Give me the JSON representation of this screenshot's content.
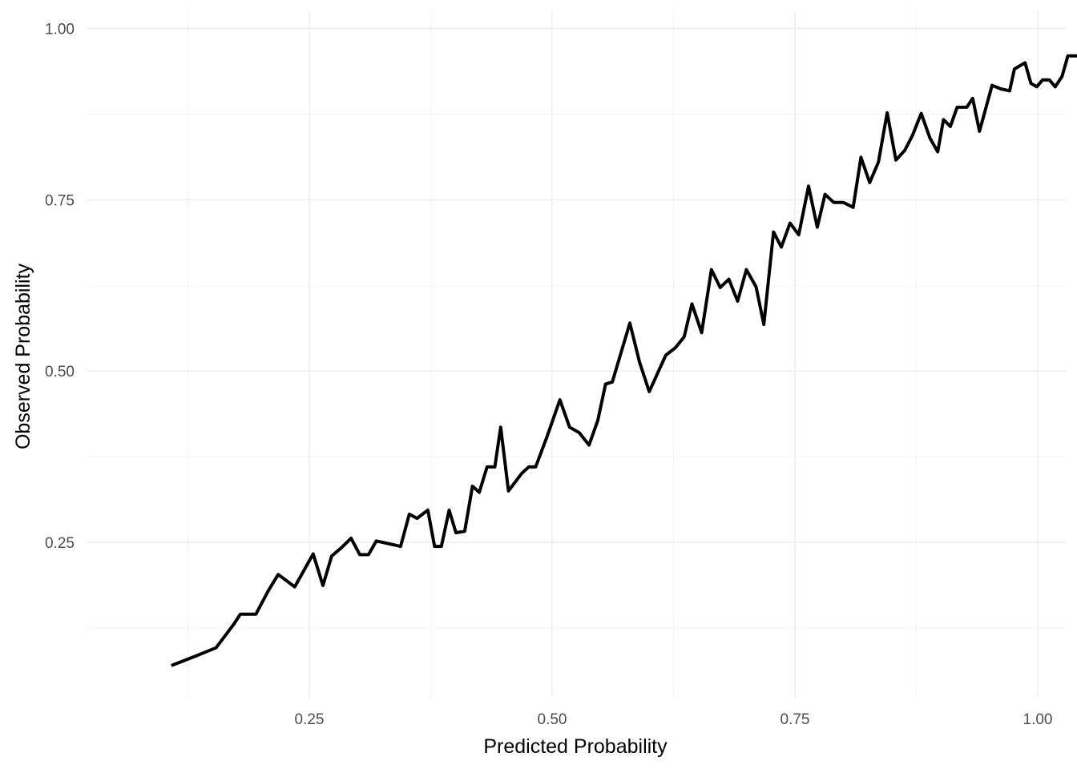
{
  "chart_data": {
    "type": "line",
    "title": "",
    "xlabel": "Predicted Probability",
    "ylabel": "Observed Probability",
    "xlim": [
      0.09,
      1.01
    ],
    "ylim": [
      0.063,
      1.013
    ],
    "x_ticks": [
      0.25,
      0.5,
      0.75,
      1.0
    ],
    "x_tick_labels": [
      "0.25",
      "0.50",
      "0.75",
      "1.00"
    ],
    "y_ticks": [
      0.25,
      0.5,
      0.75,
      1.0
    ],
    "y_tick_labels": [
      "0.25",
      "0.50",
      "0.75",
      "1.00"
    ],
    "grid": true,
    "legend": "none",
    "line_color": "#000000",
    "series": [
      {
        "points": [
          [
            0.108,
            0.07
          ],
          [
            0.133,
            0.084
          ],
          [
            0.154,
            0.096
          ],
          [
            0.172,
            0.13
          ],
          [
            0.179,
            0.145
          ],
          [
            0.195,
            0.145
          ],
          [
            0.208,
            0.18
          ],
          [
            0.218,
            0.203
          ],
          [
            0.235,
            0.185
          ],
          [
            0.254,
            0.233
          ],
          [
            0.264,
            0.187
          ],
          [
            0.273,
            0.23
          ],
          [
            0.283,
            0.242
          ],
          [
            0.293,
            0.256
          ],
          [
            0.302,
            0.232
          ],
          [
            0.311,
            0.232
          ],
          [
            0.319,
            0.252
          ],
          [
            0.344,
            0.244
          ],
          [
            0.353,
            0.291
          ],
          [
            0.361,
            0.285
          ],
          [
            0.372,
            0.297
          ],
          [
            0.379,
            0.244
          ],
          [
            0.386,
            0.244
          ],
          [
            0.394,
            0.297
          ],
          [
            0.401,
            0.264
          ],
          [
            0.41,
            0.266
          ],
          [
            0.418,
            0.332
          ],
          [
            0.425,
            0.323
          ],
          [
            0.433,
            0.36
          ],
          [
            0.441,
            0.36
          ],
          [
            0.447,
            0.418
          ],
          [
            0.455,
            0.325
          ],
          [
            0.469,
            0.351
          ],
          [
            0.476,
            0.36
          ],
          [
            0.483,
            0.36
          ],
          [
            0.495,
            0.405
          ],
          [
            0.508,
            0.458
          ],
          [
            0.518,
            0.418
          ],
          [
            0.528,
            0.41
          ],
          [
            0.538,
            0.392
          ],
          [
            0.547,
            0.428
          ],
          [
            0.555,
            0.481
          ],
          [
            0.562,
            0.484
          ],
          [
            0.58,
            0.57
          ],
          [
            0.59,
            0.513
          ],
          [
            0.6,
            0.47
          ],
          [
            0.617,
            0.523
          ],
          [
            0.627,
            0.534
          ],
          [
            0.636,
            0.55
          ],
          [
            0.644,
            0.598
          ],
          [
            0.654,
            0.556
          ],
          [
            0.664,
            0.648
          ],
          [
            0.673,
            0.622
          ],
          [
            0.682,
            0.634
          ],
          [
            0.691,
            0.602
          ],
          [
            0.7,
            0.648
          ],
          [
            0.71,
            0.623
          ],
          [
            0.718,
            0.568
          ],
          [
            0.728,
            0.703
          ],
          [
            0.736,
            0.681
          ],
          [
            0.745,
            0.716
          ],
          [
            0.754,
            0.699
          ],
          [
            0.764,
            0.77
          ],
          [
            0.773,
            0.71
          ],
          [
            0.781,
            0.758
          ],
          [
            0.79,
            0.746
          ],
          [
            0.8,
            0.746
          ],
          [
            0.81,
            0.739
          ],
          [
            0.818,
            0.812
          ],
          [
            0.827,
            0.775
          ],
          [
            0.836,
            0.805
          ],
          [
            0.845,
            0.877
          ],
          [
            0.854,
            0.808
          ],
          [
            0.863,
            0.822
          ],
          [
            0.871,
            0.844
          ],
          [
            0.88,
            0.876
          ],
          [
            0.889,
            0.84
          ],
          [
            0.897,
            0.82
          ],
          [
            0.903,
            0.867
          ],
          [
            0.91,
            0.857
          ],
          [
            0.917,
            0.885
          ],
          [
            0.927,
            0.885
          ],
          [
            0.933,
            0.898
          ],
          [
            0.94,
            0.85
          ],
          [
            0.953,
            0.917
          ],
          [
            0.962,
            0.912
          ],
          [
            0.971,
            0.909
          ],
          [
            0.976,
            0.941
          ],
          [
            0.987,
            0.95
          ],
          [
            0.993,
            0.92
          ],
          [
            0.999,
            0.915
          ],
          [
            1.005,
            0.925
          ],
          [
            1.012,
            0.925
          ],
          [
            1.018,
            0.915
          ],
          [
            1.025,
            0.93
          ],
          [
            1.031,
            0.96
          ],
          [
            1.043,
            0.96
          ],
          [
            1.052,
            0.972
          ]
        ]
      }
    ]
  }
}
